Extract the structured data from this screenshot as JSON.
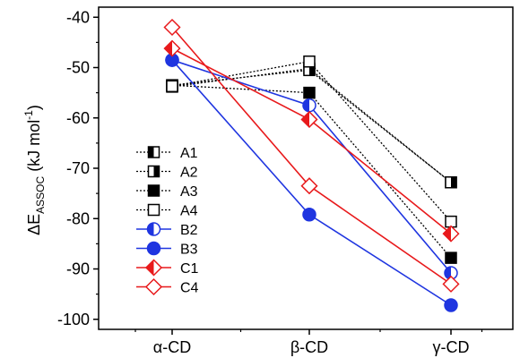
{
  "chart_data": {
    "type": "line",
    "categories": [
      "α-CD",
      "β-CD",
      "γ-CD"
    ],
    "ylabel": {
      "prefix": "ΔE",
      "subscript": "ASSOC",
      "unit_open": " (kJ mol",
      "unit_sup": "-1",
      "unit_close": ")"
    },
    "ylim": [
      -102,
      -38
    ],
    "yticks": [
      -40,
      -50,
      -60,
      -70,
      -80,
      -90,
      -100
    ],
    "ytick_labels": [
      "-40",
      "-50",
      "-60",
      "-70",
      "-80",
      "-90",
      "-100"
    ],
    "legend_position": "left",
    "series": [
      {
        "name": "A1",
        "values": [
          -53.8,
          -50.2,
          -72.8
        ],
        "color": "#000000",
        "line": "dotted",
        "marker": "square",
        "fill": "left-half"
      },
      {
        "name": "A2",
        "values": [
          -53.5,
          -50.5,
          -72.8
        ],
        "color": "#000000",
        "line": "dotted",
        "marker": "square",
        "fill": "right-half"
      },
      {
        "name": "A3",
        "values": [
          -53.5,
          -55.0,
          -87.8
        ],
        "color": "#000000",
        "line": "dotted",
        "marker": "square",
        "fill": "full"
      },
      {
        "name": "A4",
        "values": [
          -53.7,
          -48.8,
          -80.6
        ],
        "color": "#000000",
        "line": "dotted",
        "marker": "square",
        "fill": "none"
      },
      {
        "name": "B2",
        "values": [
          -48.5,
          -57.5,
          -90.8
        ],
        "color": "#1f35e0",
        "line": "solid",
        "marker": "circle",
        "fill": "left-half"
      },
      {
        "name": "B3",
        "values": [
          -48.5,
          -79.2,
          -97.2
        ],
        "color": "#1f35e0",
        "line": "solid",
        "marker": "circle",
        "fill": "full"
      },
      {
        "name": "C1",
        "values": [
          -46.2,
          -60.3,
          -83.0
        ],
        "color": "#e8191b",
        "line": "solid",
        "marker": "diamond",
        "fill": "left-half"
      },
      {
        "name": "C4",
        "values": [
          -42.0,
          -73.5,
          -93.0
        ],
        "color": "#e8191b",
        "line": "solid",
        "marker": "diamond",
        "fill": "none"
      }
    ]
  }
}
